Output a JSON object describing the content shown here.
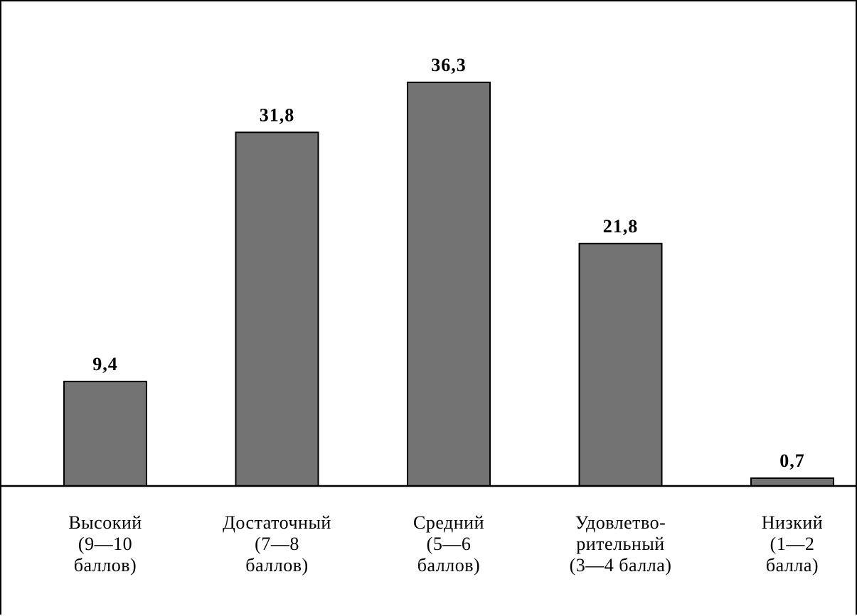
{
  "chart_data": {
    "type": "bar",
    "categories": [
      [
        "Высокий",
        "(9—10",
        "баллов)"
      ],
      [
        "Достаточный",
        "(7—8",
        "баллов)"
      ],
      [
        "Средний",
        "(5—6",
        "баллов)"
      ],
      [
        "Удовлетво-",
        "рительный",
        "(3—4 балла)"
      ],
      [
        "Низкий",
        "(1—2",
        "балла)"
      ]
    ],
    "values": [
      9.4,
      31.8,
      36.3,
      21.8,
      0.7
    ],
    "value_labels": [
      "9,4",
      "31,8",
      "36,3",
      "21,8",
      "0,7"
    ],
    "ylim": [
      0,
      40
    ],
    "grid": false,
    "legend": "none",
    "bar_color": "#737373",
    "border_color": "#000000"
  }
}
